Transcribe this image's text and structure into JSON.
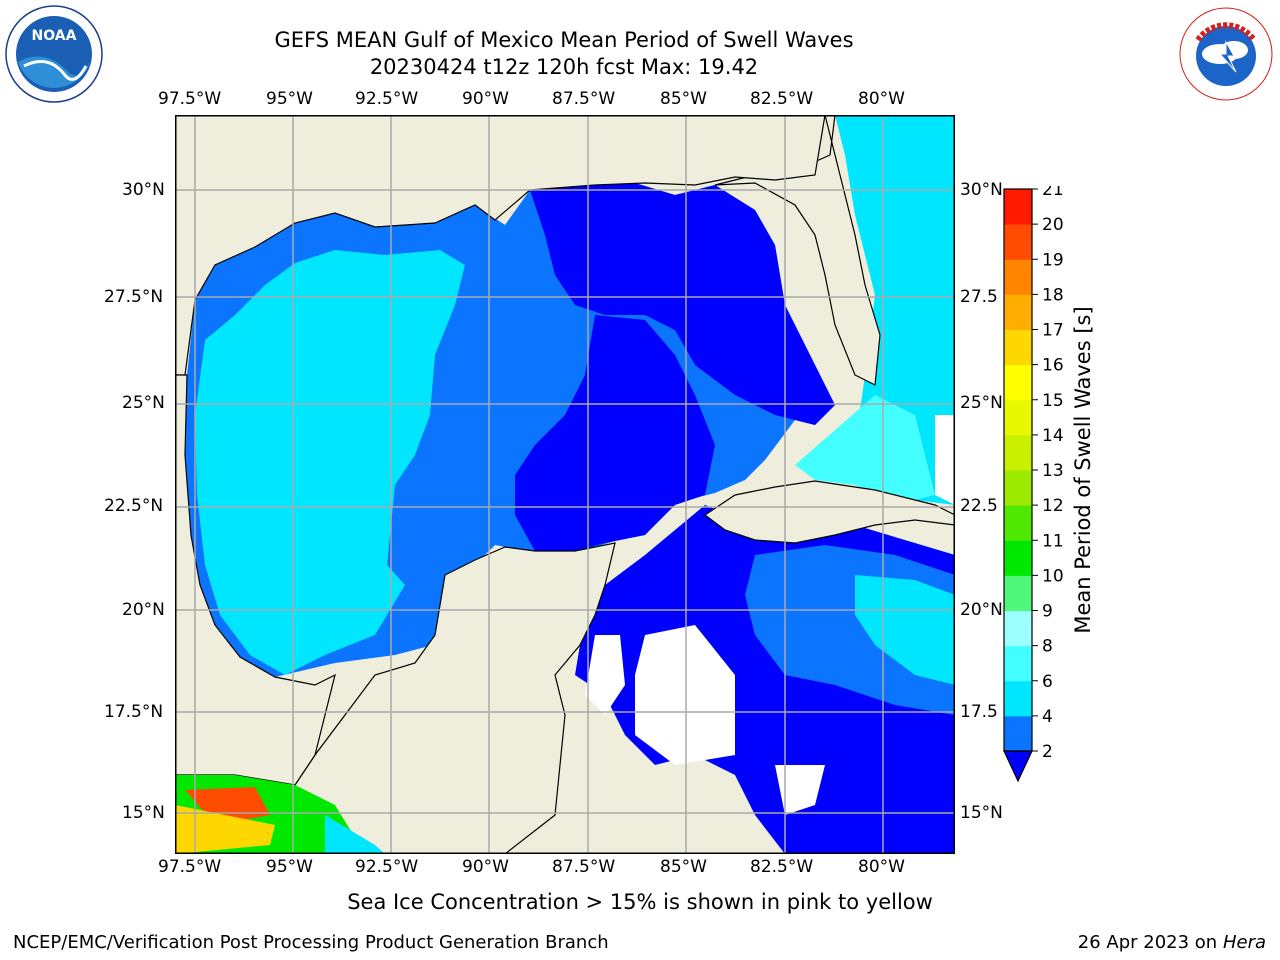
{
  "header": {
    "title_line1": "GEFS MEAN Gulf of Mexico Mean Period of Swell Waves",
    "title_line2": "20230424 t12z 120h fcst   Max: 19.42"
  },
  "logos": {
    "noaa_text": "NOAA",
    "nws_text": "NATIONAL WEATHER SERVICE"
  },
  "map": {
    "lon_ticks": [
      "97.5°W",
      "95°W",
      "92.5°W",
      "90°W",
      "87.5°W",
      "85°W",
      "82.5°W",
      "80°W"
    ],
    "lat_ticks": [
      "30°N",
      "27.5°N",
      "25°N",
      "22.5°N",
      "20°N",
      "17.5°N",
      "15°N"
    ],
    "lat_ticks_right": [
      "30°N",
      "27.5",
      "25°N",
      "22.5",
      "20°N",
      "17.5",
      "15°N"
    ],
    "colors": {
      "land": "#efeedd",
      "grid": "#aaaaaa"
    }
  },
  "colorbar": {
    "label": "Mean Period of Swell Waves [s]",
    "ticks": [
      "2",
      "4",
      "6",
      "8",
      "9",
      "10",
      "11",
      "12",
      "13",
      "14",
      "15",
      "16",
      "17",
      "18",
      "19",
      "20",
      "21"
    ],
    "colors": [
      "#0b75ff",
      "#00e6ff",
      "#44ffff",
      "#9bffff",
      "#4ff87b",
      "#00e800",
      "#4fe800",
      "#9cea00",
      "#c8f000",
      "#e8f800",
      "#ffff00",
      "#ffd700",
      "#ffad00",
      "#ff8400",
      "#ff4c00",
      "#ff1a00"
    ],
    "under_color": "#0000ff"
  },
  "chart_data": {
    "type": "heatmap",
    "title": "GEFS MEAN Gulf of Mexico Mean Period of Swell Waves",
    "subtitle": "20230424 t12z 120h fcst   Max: 19.42",
    "max_value": 19.42,
    "x_ticks": [
      "97.5°W",
      "95°W",
      "92.5°W",
      "90°W",
      "87.5°W",
      "85°W",
      "82.5°W",
      "80°W"
    ],
    "y_ticks": [
      "30°N",
      "27.5°N",
      "25°N",
      "22.5°N",
      "20°N",
      "17.5°N",
      "15°N"
    ],
    "xlim": [
      -98,
      -78.2
    ],
    "ylim": [
      14,
      31.8
    ],
    "colorbar_label": "Mean Period of Swell Waves [s]",
    "colorbar_levels": [
      2,
      4,
      6,
      8,
      9,
      10,
      11,
      12,
      13,
      14,
      15,
      16,
      17,
      18,
      19,
      20,
      21
    ],
    "grid": true
  },
  "note": "Sea Ice Concentration > 15% is shown in pink to yellow",
  "footer": {
    "left": "NCEP/EMC/Verification Post Processing Product Generation Branch",
    "right_date": "26 Apr 2023 on ",
    "right_host": "Hera"
  }
}
